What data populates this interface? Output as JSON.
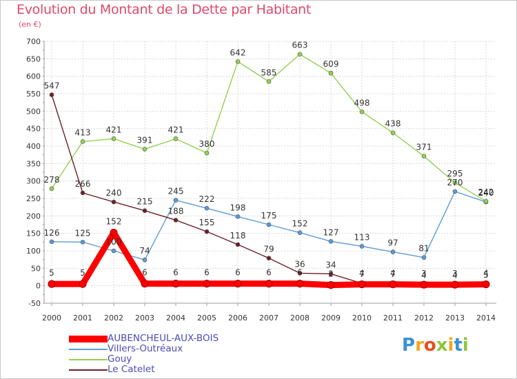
{
  "title": "Evolution du Montant de la Dette par Habitant",
  "subtitle": "(en €)",
  "logo": {
    "text": "Proxiti",
    "letters": [
      "P",
      "r",
      "o",
      "x",
      "i",
      "t",
      "i"
    ]
  },
  "chart_data": {
    "type": "line",
    "x": [
      "2000",
      "2001",
      "2002",
      "2003",
      "2004",
      "2005",
      "2006",
      "2007",
      "2008",
      "2009",
      "2010",
      "2011",
      "2012",
      "2013",
      "2014"
    ],
    "ylim": [
      -50,
      700
    ],
    "yticks": [
      -50,
      0,
      50,
      100,
      150,
      200,
      250,
      300,
      350,
      400,
      450,
      500,
      550,
      600,
      650,
      700
    ],
    "grid": true,
    "legend": "bottom-left",
    "series": [
      {
        "name": "AUBENCHEUL-AUX-BOIS",
        "color": "#ff0000",
        "values": [
          5,
          5,
          152,
          6,
          6,
          6,
          6,
          6,
          6,
          2,
          4,
          4,
          3,
          3,
          4
        ],
        "labels": [
          "5",
          "5",
          "152",
          "6",
          "6",
          "6",
          "6",
          "6",
          "6",
          "2",
          "4",
          "4",
          "3",
          "3",
          "4"
        ]
      },
      {
        "name": "Villers-Outréaux",
        "color": "#5b9bd5",
        "values": [
          126,
          125,
          100,
          74,
          245,
          222,
          198,
          175,
          152,
          127,
          113,
          97,
          81,
          270,
          240
        ],
        "labels": [
          "126",
          "125",
          "100",
          "74",
          "245",
          "222",
          "198",
          "175",
          "152",
          "127",
          "113",
          "97",
          "81",
          "270",
          "240"
        ]
      },
      {
        "name": "Gouy",
        "color": "#92d050",
        "values": [
          278,
          413,
          421,
          391,
          421,
          380,
          642,
          585,
          663,
          609,
          498,
          438,
          371,
          295,
          242
        ],
        "labels": [
          "278",
          "413",
          "421",
          "391",
          "421",
          "380",
          "642",
          "585",
          "663",
          "609",
          "498",
          "438",
          "371",
          "295",
          "242"
        ]
      },
      {
        "name": "Le Catelet",
        "color": "#6b1f28",
        "values": [
          547,
          266,
          240,
          215,
          188,
          155,
          118,
          79,
          36,
          34,
          7,
          7,
          4,
          4,
          5
        ],
        "labels": [
          "547",
          "266",
          "240",
          "215",
          "188",
          "155",
          "118",
          "79",
          "36",
          "34",
          "7",
          "7",
          "4",
          "4",
          "5"
        ]
      }
    ]
  }
}
